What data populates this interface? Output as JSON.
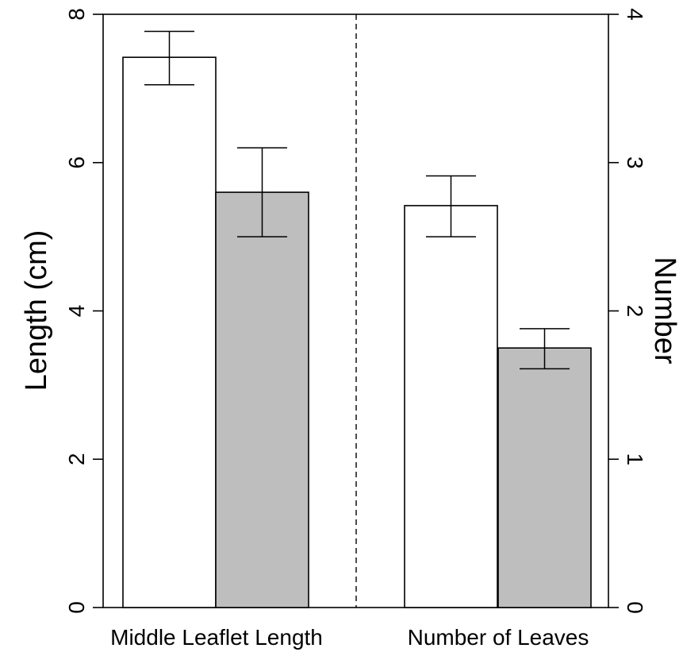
{
  "chart_data": {
    "type": "bar",
    "categories": [
      "Middle Leaflet Length",
      "Number of Leaves"
    ],
    "left_axis": {
      "label": "Length (cm)",
      "ylim": [
        0,
        8
      ],
      "ticks": [
        "0",
        "2",
        "4",
        "6",
        "8"
      ]
    },
    "right_axis": {
      "label": "Number",
      "ylim": [
        0,
        4
      ],
      "ticks": [
        "0",
        "1",
        "2",
        "3",
        "4"
      ]
    },
    "series": [
      {
        "color": "#ffffff",
        "values": [
          7.42,
          2.71
        ],
        "error_low": [
          7.05,
          2.5
        ],
        "error_high": [
          7.77,
          2.91
        ]
      },
      {
        "color": "#bebebe",
        "values": [
          5.6,
          1.75
        ],
        "error_low": [
          5.0,
          1.61
        ],
        "error_high": [
          6.2,
          1.88
        ]
      }
    ],
    "axis_for_category": [
      "left",
      "right"
    ],
    "grid": false,
    "divider": "dashed"
  }
}
